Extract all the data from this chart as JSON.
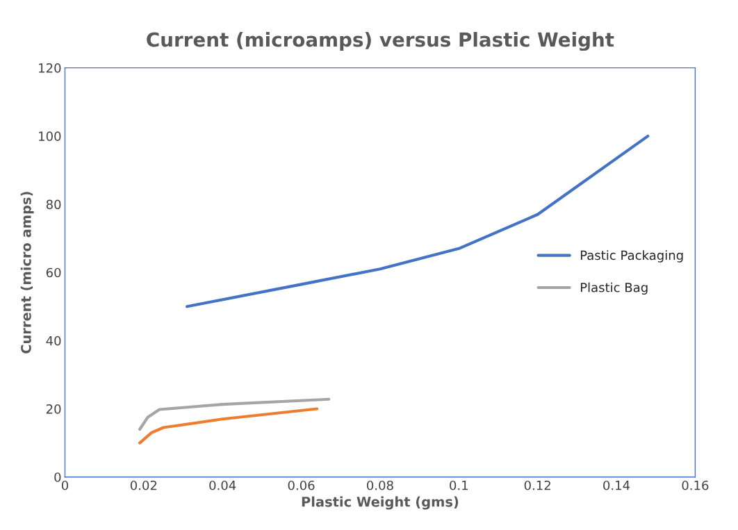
{
  "chart_data": {
    "type": "line",
    "title": "Current (microamps) versus Plastic Weight",
    "xlabel": "Plastic Weight (gms)",
    "ylabel": "Current (micro amps)",
    "series": [
      {
        "name": "Pastic Packaging",
        "color": "#4472c4",
        "x": [
          0.031,
          0.06,
          0.08,
          0.1,
          0.12,
          0.148
        ],
        "values": [
          50,
          56.5,
          61,
          67,
          77,
          100
        ]
      },
      {
        "color": "#ed7d31",
        "x": [
          0.019,
          0.022,
          0.025,
          0.04,
          0.064
        ],
        "values": [
          10,
          13,
          14.5,
          17,
          20
        ]
      },
      {
        "name": "Plastic Bag",
        "color": "#a5a5a5",
        "x": [
          0.019,
          0.021,
          0.024,
          0.04,
          0.067
        ],
        "values": [
          14,
          17.5,
          19.8,
          21.3,
          22.8
        ]
      }
    ],
    "xlim": [
      0,
      0.16
    ],
    "xticks": [
      {
        "value": 0,
        "label": "0"
      },
      {
        "value": 0.02,
        "label": "0.02"
      },
      {
        "value": 0.04,
        "label": "0.04"
      },
      {
        "value": 0.06,
        "label": "0.06"
      },
      {
        "value": 0.08,
        "label": "0.08"
      },
      {
        "value": 0.1,
        "label": "0.1"
      },
      {
        "value": 0.12,
        "label": "0.12"
      },
      {
        "value": 0.14,
        "label": "0.14"
      },
      {
        "value": 0.16,
        "label": "0.16"
      }
    ],
    "ylim": [
      0,
      120
    ],
    "yticks": [
      0,
      20,
      40,
      60,
      80,
      100,
      120
    ],
    "grid": false,
    "legend": "right",
    "marker": "none",
    "line_style": "solid"
  }
}
